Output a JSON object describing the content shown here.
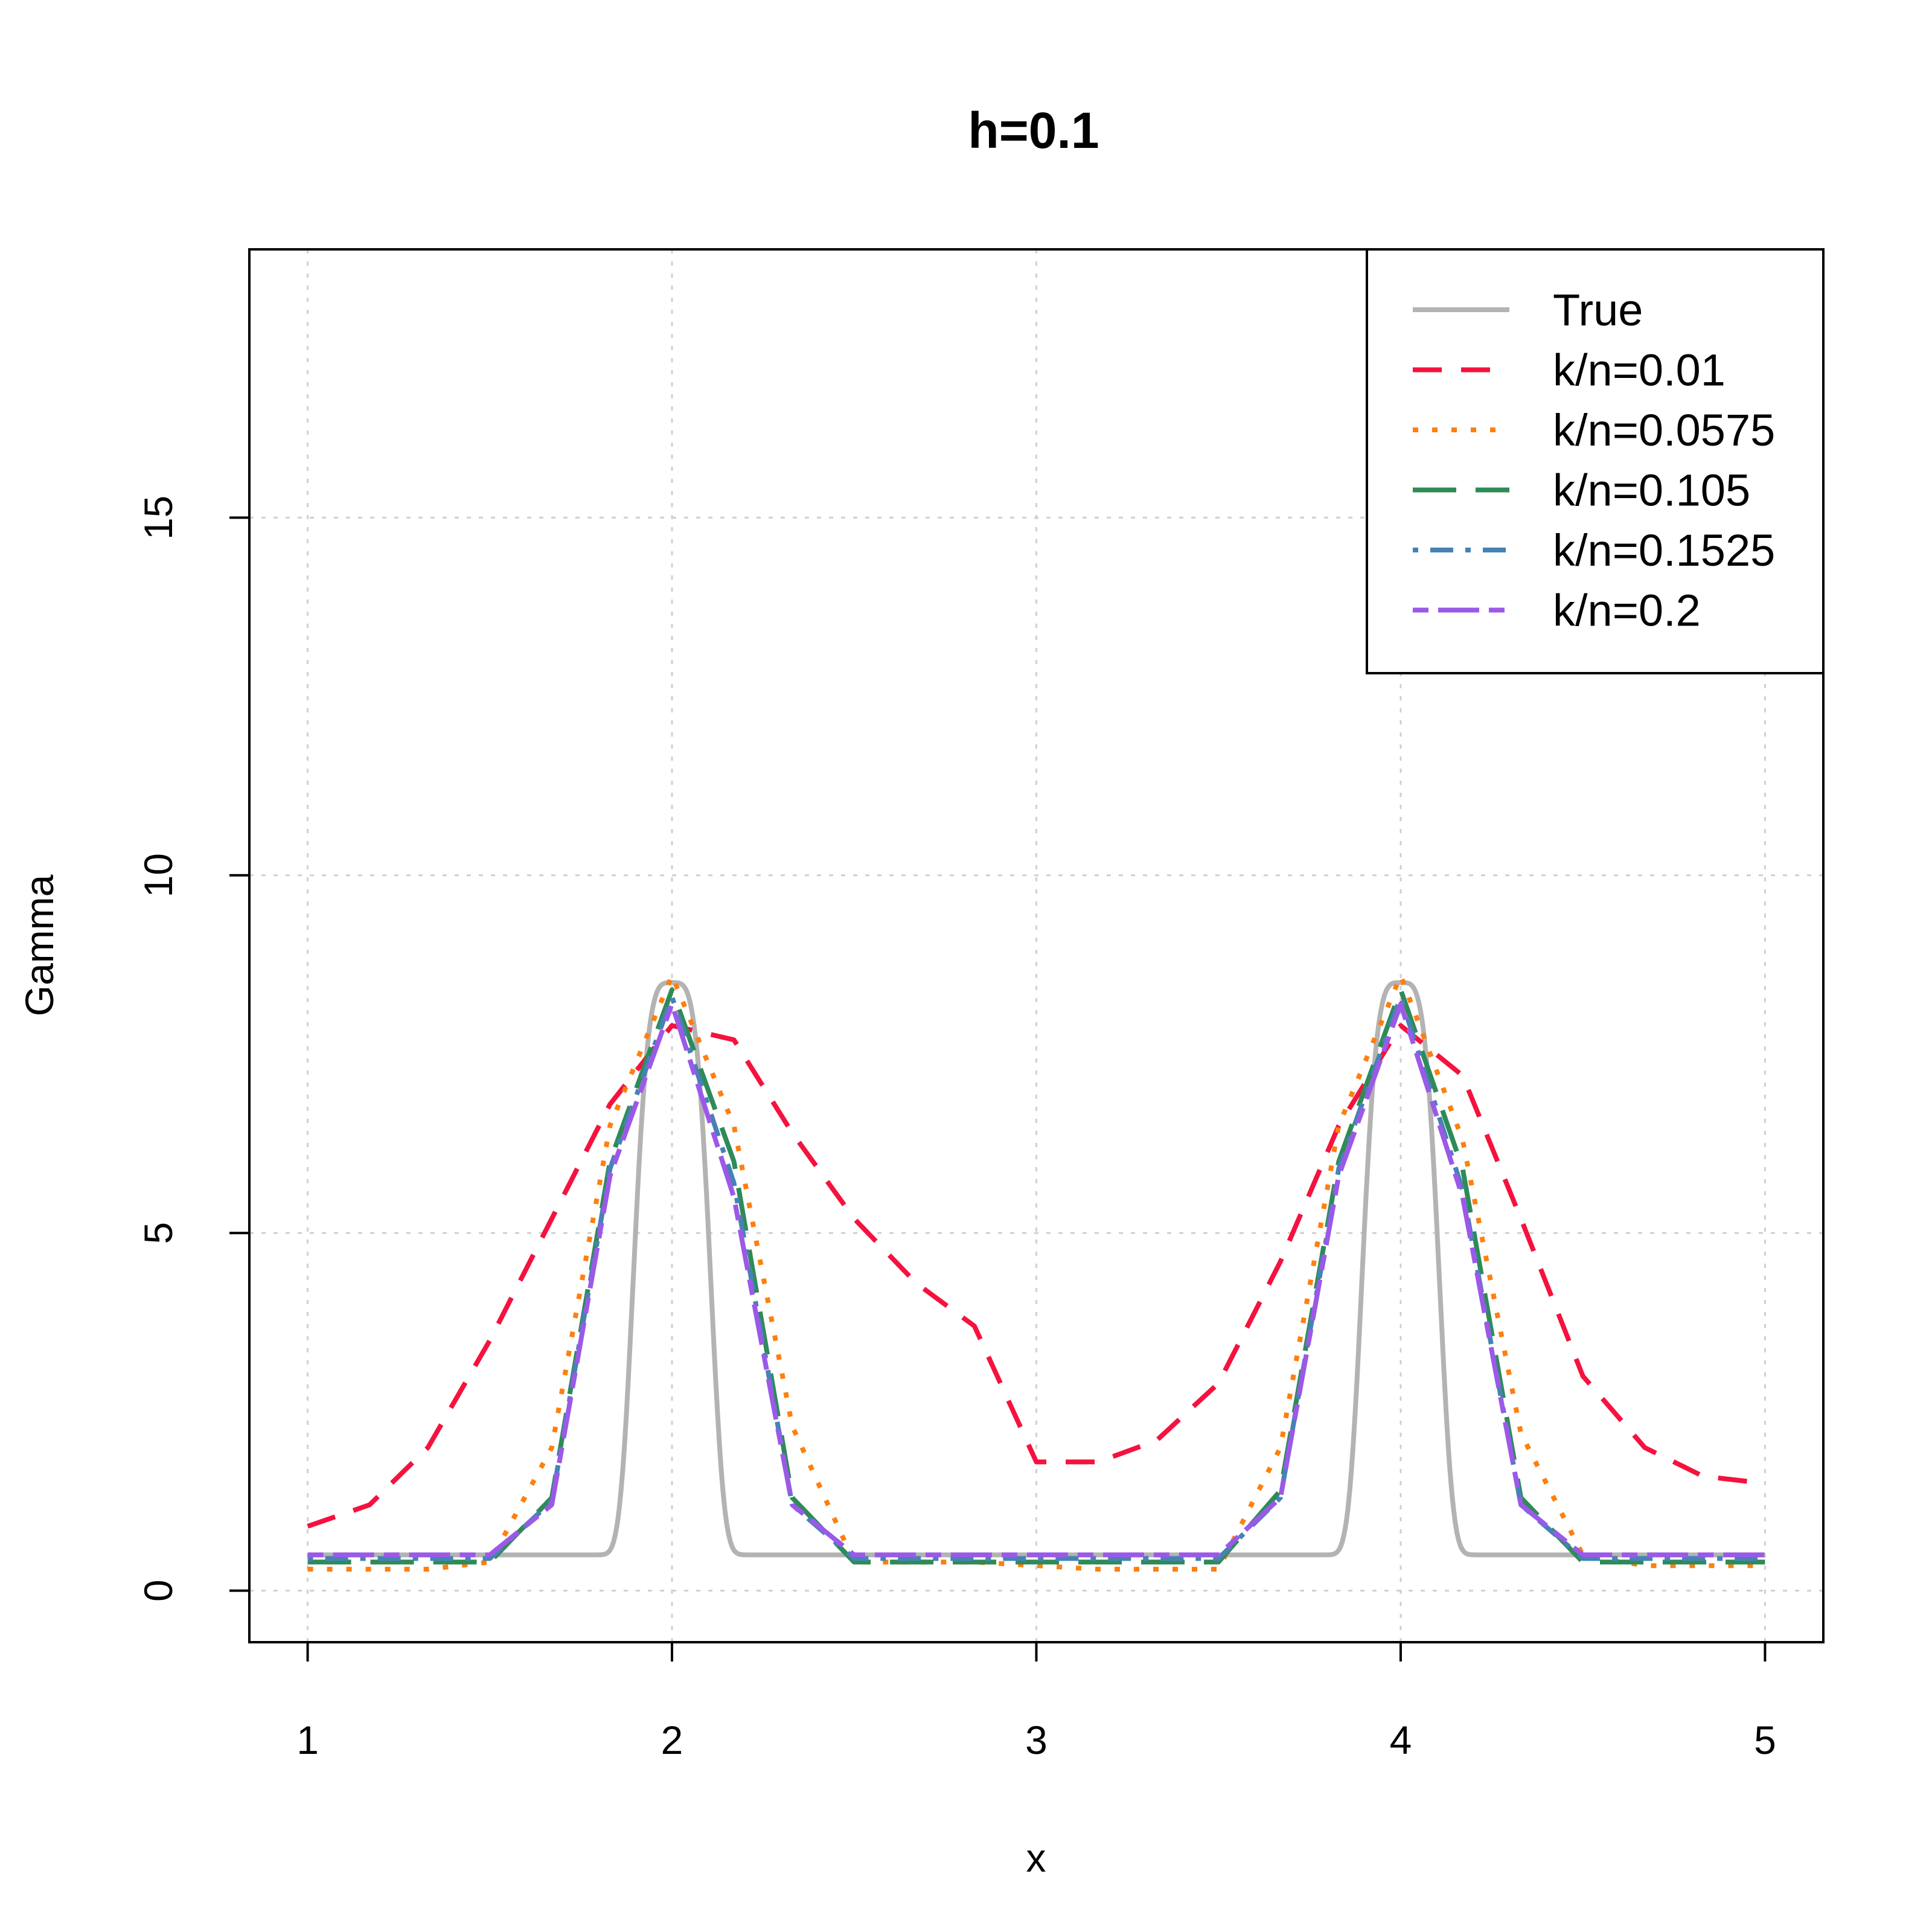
{
  "chart_data": {
    "type": "line",
    "title": "h=0.1",
    "xlabel": "x",
    "ylabel": "Gamma",
    "xlim": [
      0.84,
      5.16
    ],
    "ylim": [
      -0.72,
      18.75
    ],
    "x_ticks": [
      1,
      2,
      3,
      4,
      5
    ],
    "y_ticks": [
      0,
      5,
      10,
      15
    ],
    "x_tick_labels": [
      "1",
      "2",
      "3",
      "4",
      "5"
    ],
    "y_tick_labels": [
      "0",
      "5",
      "10",
      "15"
    ],
    "grid": true,
    "legend_position": "top-right",
    "true_curve": {
      "name": "True",
      "color": "#b3b3b3",
      "baseline": 0.5,
      "amplitude": 8.0,
      "centers": [
        2,
        4
      ],
      "sigma": 0.115,
      "power": 4
    },
    "series": [
      {
        "name": "k/n=0.01",
        "color": "#f5123e",
        "style": "dashed",
        "x": [
          1.0,
          1.17,
          1.33,
          1.5,
          1.67,
          1.83,
          2.0,
          2.17,
          2.33,
          2.5,
          2.67,
          2.83,
          3.0,
          3.17,
          3.33,
          3.5,
          3.67,
          3.83,
          4.0,
          4.17,
          4.33,
          4.5,
          4.67,
          4.83,
          5.0
        ],
        "y": [
          0.9,
          1.2,
          2.0,
          3.5,
          5.2,
          6.8,
          7.9,
          7.7,
          6.4,
          5.2,
          4.3,
          3.7,
          1.8,
          1.8,
          2.1,
          2.9,
          4.6,
          6.5,
          7.9,
          7.2,
          5.2,
          3.0,
          2.0,
          1.6,
          1.5
        ]
      },
      {
        "name": "k/n=0.0575",
        "color": "#ff7f0e",
        "style": "dotted",
        "x": [
          1.0,
          1.17,
          1.33,
          1.5,
          1.67,
          1.83,
          2.0,
          2.17,
          2.33,
          2.5,
          2.67,
          2.83,
          3.0,
          3.17,
          3.33,
          3.5,
          3.67,
          3.83,
          4.0,
          4.17,
          4.33,
          4.5,
          4.67,
          4.83,
          5.0
        ],
        "y": [
          0.3,
          0.3,
          0.3,
          0.4,
          2.0,
          6.5,
          8.6,
          6.5,
          2.3,
          0.4,
          0.4,
          0.4,
          0.35,
          0.3,
          0.3,
          0.3,
          2.0,
          6.5,
          8.6,
          6.3,
          2.2,
          0.5,
          0.35,
          0.35,
          0.35
        ]
      },
      {
        "name": "k/n=0.105",
        "color": "#2e8b57",
        "style": "longdash",
        "x": [
          1.0,
          1.17,
          1.33,
          1.5,
          1.67,
          1.83,
          2.0,
          2.17,
          2.33,
          2.5,
          2.67,
          2.83,
          3.0,
          3.17,
          3.33,
          3.5,
          3.67,
          3.83,
          4.0,
          4.17,
          4.33,
          4.5,
          4.67,
          4.83,
          5.0
        ],
        "y": [
          0.4,
          0.4,
          0.4,
          0.4,
          1.3,
          6.0,
          8.4,
          6.0,
          1.3,
          0.4,
          0.4,
          0.4,
          0.4,
          0.4,
          0.4,
          0.4,
          1.4,
          6.0,
          8.4,
          5.9,
          1.3,
          0.4,
          0.4,
          0.4,
          0.4
        ]
      },
      {
        "name": "k/n=0.1525",
        "color": "#4682b4",
        "style": "dotdash",
        "x": [
          1.0,
          1.17,
          1.33,
          1.5,
          1.67,
          1.83,
          2.0,
          2.17,
          2.33,
          2.5,
          2.67,
          2.83,
          3.0,
          3.17,
          3.33,
          3.5,
          3.67,
          3.83,
          4.0,
          4.17,
          4.33,
          4.5,
          4.67,
          4.83,
          5.0
        ],
        "y": [
          0.45,
          0.45,
          0.45,
          0.45,
          1.25,
          5.9,
          8.3,
          5.7,
          1.2,
          0.45,
          0.45,
          0.45,
          0.45,
          0.45,
          0.45,
          0.45,
          1.3,
          5.9,
          8.3,
          5.6,
          1.2,
          0.45,
          0.45,
          0.45,
          0.45
        ]
      },
      {
        "name": "k/n=0.2",
        "color": "#9b59e8",
        "style": "twodash",
        "x": [
          1.0,
          1.17,
          1.33,
          1.5,
          1.67,
          1.83,
          2.0,
          2.17,
          2.33,
          2.5,
          2.67,
          2.83,
          3.0,
          3.17,
          3.33,
          3.5,
          3.67,
          3.83,
          4.0,
          4.17,
          4.33,
          4.5,
          4.67,
          4.83,
          5.0
        ],
        "y": [
          0.5,
          0.5,
          0.5,
          0.5,
          1.2,
          5.8,
          8.2,
          5.5,
          1.2,
          0.5,
          0.5,
          0.5,
          0.5,
          0.5,
          0.5,
          0.5,
          1.3,
          5.8,
          8.2,
          5.5,
          1.2,
          0.5,
          0.5,
          0.5,
          0.5
        ]
      }
    ]
  }
}
